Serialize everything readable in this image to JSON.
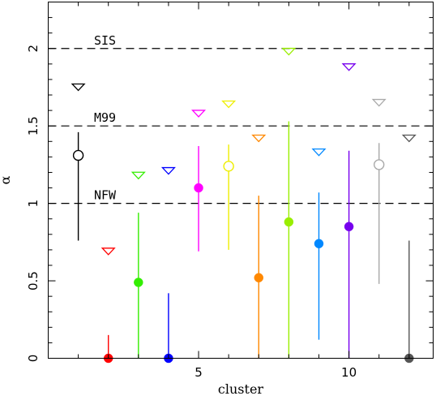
{
  "chart_data": {
    "type": "scatter",
    "xlabel": "cluster",
    "ylabel": "α",
    "xlim": [
      0,
      12.8
    ],
    "ylim": [
      0,
      2.3
    ],
    "x_ticks": [
      5,
      10
    ],
    "y_ticks": [
      0,
      0.5,
      1,
      1.5,
      2
    ],
    "grid": false,
    "reference_lines": [
      {
        "label": "SIS",
        "y": 2.0
      },
      {
        "label": "M99",
        "y": 1.5
      },
      {
        "label": "NFW",
        "y": 1.0
      }
    ],
    "points": [
      {
        "cluster": 1,
        "kind": "open-circle",
        "y": 1.31,
        "err_low": 0.76,
        "err_high": 1.46,
        "color": "#000000"
      },
      {
        "cluster": 1,
        "kind": "upper-limit",
        "y": 1.75,
        "color": "#000000"
      },
      {
        "cluster": 2,
        "kind": "upper-limit",
        "y": 0.69,
        "color": "#ff0000"
      },
      {
        "cluster": 2,
        "kind": "filled-circle",
        "y": 0.0,
        "err_low": 0.0,
        "err_high": 0.15,
        "color": "#ff0000"
      },
      {
        "cluster": 3,
        "kind": "filled-circle",
        "y": 0.49,
        "err_low": 0.0,
        "err_high": 0.94,
        "color": "#33ee00"
      },
      {
        "cluster": 3,
        "kind": "upper-limit",
        "y": 1.18,
        "color": "#33ee00"
      },
      {
        "cluster": 4,
        "kind": "filled-circle",
        "y": 0.0,
        "err_low": 0.0,
        "err_high": 0.42,
        "color": "#0000ff"
      },
      {
        "cluster": 4,
        "kind": "upper-limit",
        "y": 1.21,
        "color": "#0000ff"
      },
      {
        "cluster": 5,
        "kind": "filled-circle",
        "y": 1.1,
        "err_low": 0.69,
        "err_high": 1.37,
        "color": "#ff00ff"
      },
      {
        "cluster": 5,
        "kind": "upper-limit",
        "y": 1.58,
        "color": "#ff00ff"
      },
      {
        "cluster": 6,
        "kind": "open-circle",
        "y": 1.24,
        "err_low": 0.7,
        "err_high": 1.38,
        "color": "#eeee00"
      },
      {
        "cluster": 6,
        "kind": "upper-limit",
        "y": 1.64,
        "color": "#eeee00"
      },
      {
        "cluster": 7,
        "kind": "filled-circle",
        "y": 0.52,
        "err_low": 0.0,
        "err_high": 1.05,
        "color": "#ff8800"
      },
      {
        "cluster": 7,
        "kind": "upper-limit",
        "y": 1.42,
        "color": "#ff8800"
      },
      {
        "cluster": 8,
        "kind": "filled-circle",
        "y": 0.88,
        "err_low": 0.0,
        "err_high": 1.53,
        "color": "#99ee00"
      },
      {
        "cluster": 8,
        "kind": "upper-limit",
        "y": 1.98,
        "color": "#99ee00"
      },
      {
        "cluster": 9,
        "kind": "filled-circle",
        "y": 0.74,
        "err_low": 0.12,
        "err_high": 1.07,
        "color": "#0088ff"
      },
      {
        "cluster": 9,
        "kind": "upper-limit",
        "y": 1.33,
        "color": "#0088ff"
      },
      {
        "cluster": 10,
        "kind": "filled-circle",
        "y": 0.85,
        "err_low": 0.0,
        "err_high": 1.34,
        "color": "#7700ee"
      },
      {
        "cluster": 10,
        "kind": "upper-limit",
        "y": 1.88,
        "color": "#7700ee"
      },
      {
        "cluster": 11,
        "kind": "open-circle",
        "y": 1.25,
        "err_low": 0.48,
        "err_high": 1.39,
        "color": "#aaaaaa"
      },
      {
        "cluster": 11,
        "kind": "upper-limit",
        "y": 1.65,
        "color": "#aaaaaa"
      },
      {
        "cluster": 12,
        "kind": "filled-circle",
        "y": 0.0,
        "err_low": 0.0,
        "err_high": 0.76,
        "color": "#555555"
      },
      {
        "cluster": 12,
        "kind": "upper-limit",
        "y": 1.42,
        "color": "#555555"
      }
    ]
  }
}
